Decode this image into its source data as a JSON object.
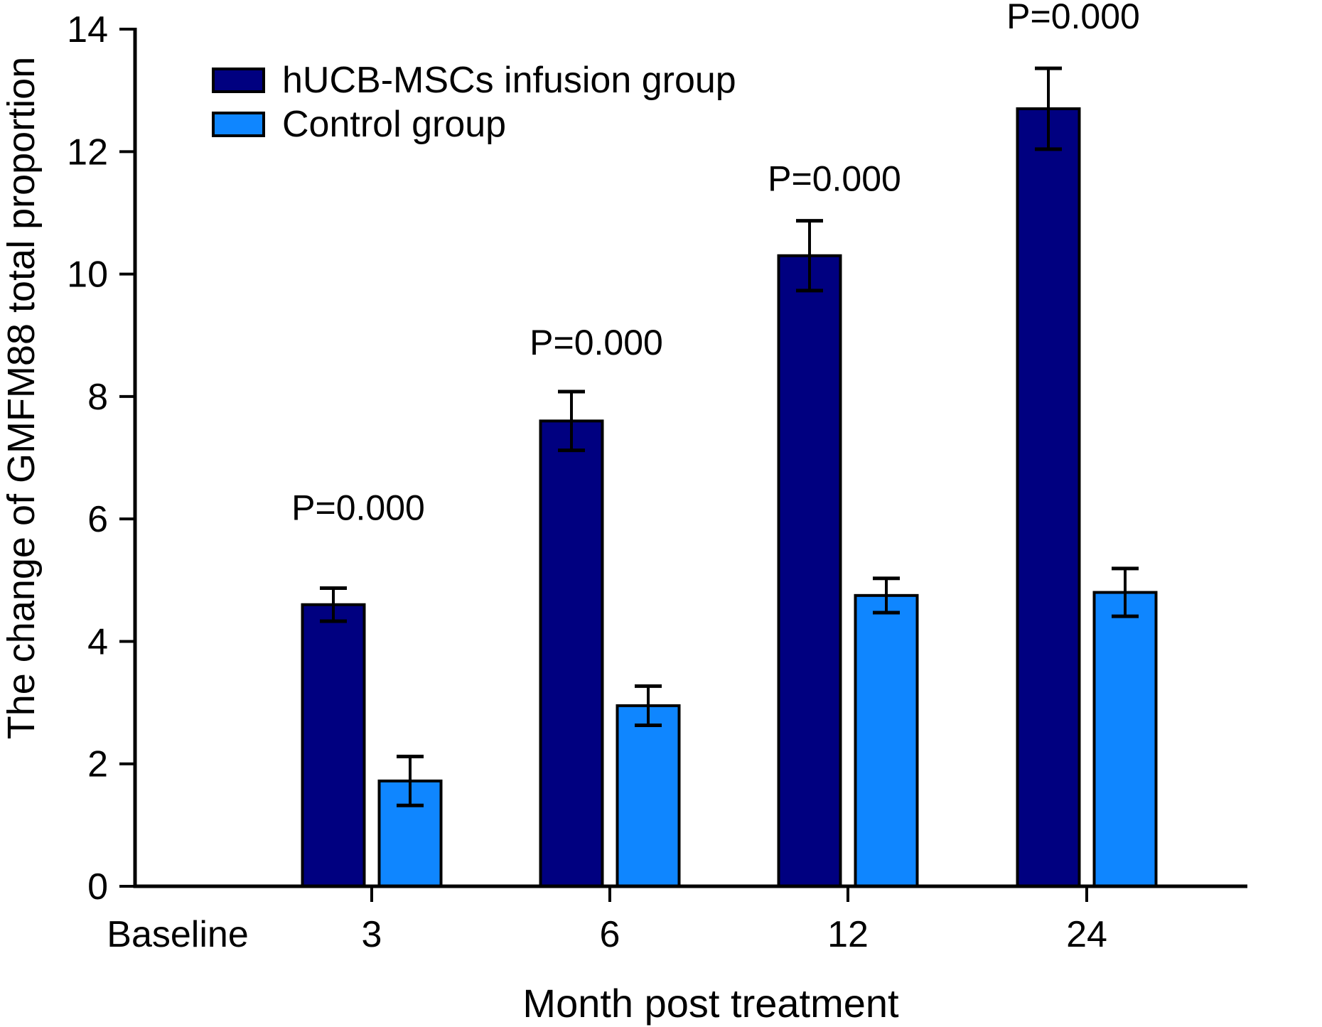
{
  "figure": {
    "background": "#ffffff",
    "text_color": "#000000"
  },
  "chart_data": {
    "type": "bar",
    "title": "",
    "xlabel": "Month post treatment",
    "ylabel": "The change of GMFM88 total proportion",
    "categories": [
      "Baseline",
      "3",
      "6",
      "12",
      "24"
    ],
    "bar_categories": [
      "3",
      "6",
      "12",
      "24"
    ],
    "ylim": [
      0,
      14
    ],
    "yticks": [
      "0",
      "2",
      "4",
      "6",
      "8",
      "10",
      "12",
      "14"
    ],
    "grid": false,
    "legend_position": "top-left-inside",
    "series": [
      {
        "name": "hUCB-MSCs infusion group",
        "color": "#000080",
        "values": [
          4.6,
          7.6,
          10.3,
          12.7
        ],
        "errors": [
          0.27,
          0.48,
          0.57,
          0.66
        ]
      },
      {
        "name": "Control group",
        "color": "#0f86ff",
        "values": [
          1.72,
          2.95,
          4.75,
          4.8
        ],
        "errors": [
          0.4,
          0.32,
          0.28,
          0.39
        ]
      }
    ],
    "annotations": [
      {
        "text": "P=0.000",
        "category": "3"
      },
      {
        "text": "P=0.000",
        "category": "6"
      },
      {
        "text": "P=0.000",
        "category": "12"
      },
      {
        "text": "P=0.000",
        "category": "24"
      }
    ]
  }
}
